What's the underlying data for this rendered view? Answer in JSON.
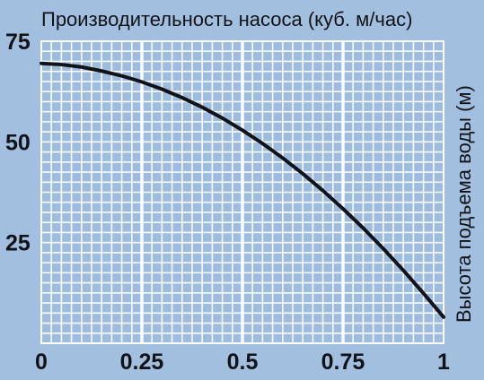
{
  "chart_data": {
    "type": "line",
    "title": "Производительность насоса (куб. м/час)",
    "ylabel": "Высота подъема воды (м)",
    "xlabel": "",
    "xlim": [
      0,
      1
    ],
    "ylim": [
      0,
      75
    ],
    "x_ticks": [
      0,
      0.25,
      0.5,
      0.75,
      1
    ],
    "x_tick_labels": [
      "0",
      "0.25",
      "0.5",
      "0.75",
      "1"
    ],
    "y_ticks": [
      25,
      50,
      75
    ],
    "y_tick_labels": [
      "25",
      "50",
      "75"
    ],
    "grid": true,
    "series": [
      {
        "x": [
          0,
          0.05,
          0.1,
          0.15,
          0.2,
          0.25,
          0.3,
          0.35,
          0.4,
          0.45,
          0.5,
          0.55,
          0.6,
          0.65,
          0.7,
          0.75,
          0.8,
          0.85,
          0.9,
          0.95,
          1
        ],
        "y": [
          69.5,
          69.2,
          68.6,
          67.6,
          66.4,
          64.9,
          63.1,
          61.0,
          58.6,
          55.9,
          52.9,
          49.6,
          46.0,
          42.1,
          37.9,
          33.4,
          28.6,
          23.5,
          18.1,
          12.4,
          6.5
        ]
      }
    ],
    "colors": {
      "background": "#a2bfe0",
      "grid": "#ffffff",
      "line": "#111316",
      "text": "#111316"
    }
  }
}
